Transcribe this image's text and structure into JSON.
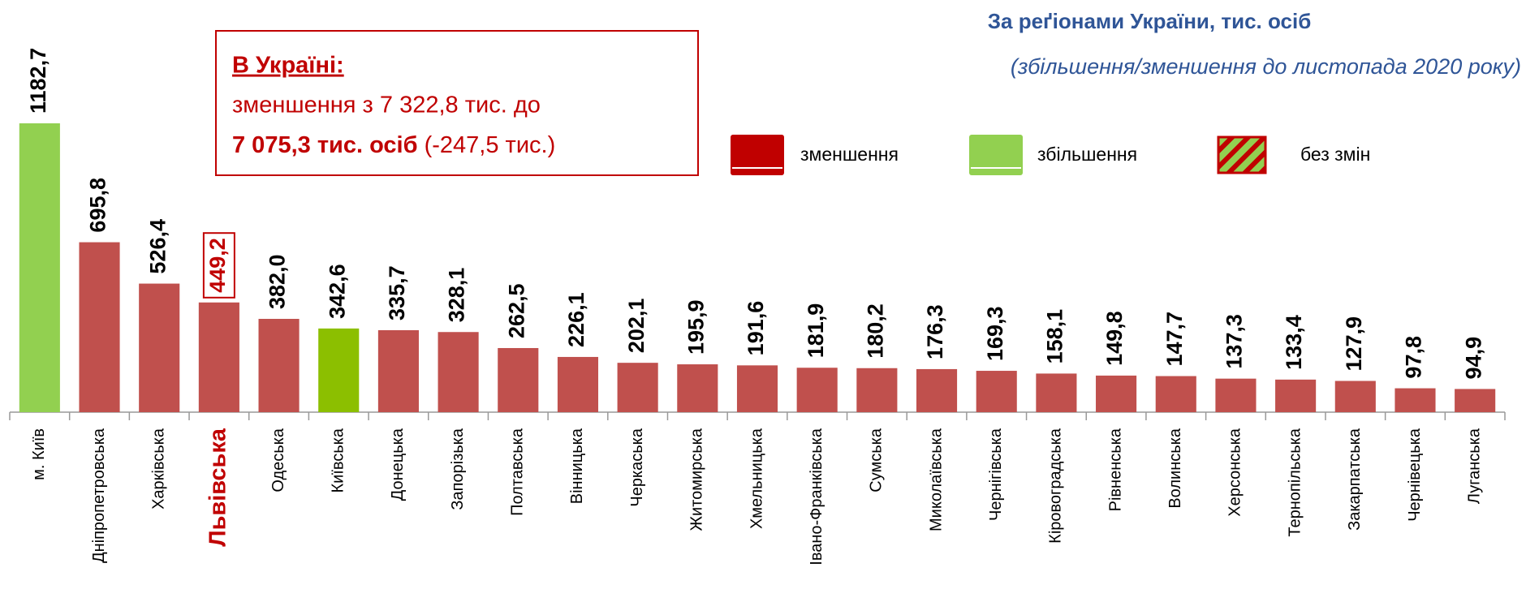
{
  "chart_data": {
    "type": "bar",
    "title": "За реґіонами України, тис. осіб",
    "subtitle": "(збільшення/зменшення до листопада 2020 року)",
    "categories": [
      "м. Київ",
      "Дніпропетровська",
      "Харківська",
      "Львівська",
      "Одеська",
      "Київська",
      "Донецька",
      "Запорізька",
      "Полтавська",
      "Вінницька",
      "Черкаська",
      "Житомирська",
      "Хмельницька",
      "Івано-Франківська",
      "Сумська",
      "Миколаївська",
      "Чернігівська",
      "Кіровоградська",
      "Рівненська",
      "Волинська",
      "Херсонська",
      "Тернопільська",
      "Закарпатська",
      "Чернівецька",
      "Луганська"
    ],
    "values": [
      1182.7,
      695.8,
      526.4,
      449.2,
      382.0,
      342.6,
      335.7,
      328.1,
      262.5,
      226.1,
      202.1,
      195.9,
      191.6,
      181.9,
      180.2,
      176.3,
      169.3,
      158.1,
      149.8,
      147.7,
      137.3,
      133.4,
      127.9,
      97.8,
      94.9
    ],
    "value_labels": [
      "1182,7",
      "695,8",
      "526,4",
      "449,2",
      "382,0",
      "342,6",
      "335,7",
      "328,1",
      "262,5",
      "226,1",
      "202,1",
      "195,9",
      "191,6",
      "181,9",
      "180,2",
      "176,3",
      "169,3",
      "158,1",
      "149,8",
      "147,7",
      "137,3",
      "133,4",
      "127,9",
      "97,8",
      "94,9"
    ],
    "colors": [
      "#92d050",
      "#c0504d",
      "#c0504d",
      "#c0504d",
      "#c0504d",
      "#8cbf00",
      "#c0504d",
      "#c0504d",
      "#c0504d",
      "#c0504d",
      "#c0504d",
      "#c0504d",
      "#c0504d",
      "#c0504d",
      "#c0504d",
      "#c0504d",
      "#c0504d",
      "#c0504d",
      "#c0504d",
      "#c0504d",
      "#c0504d",
      "#c0504d",
      "#c0504d",
      "#c0504d",
      "#c0504d"
    ],
    "highlight": "Львівська",
    "legend": [
      {
        "name": "зменшення",
        "color": "#c00000"
      },
      {
        "name": "збільшення",
        "color": "#92d050"
      },
      {
        "name": "без змін",
        "color": "#92d050",
        "hatch": "#c00000"
      }
    ],
    "annotation": {
      "heading": "В Україні:",
      "line1": "зменшення з 7 322,8 тис. до",
      "bold": "7 075,3 тис. осіб",
      "rest": " (-247,5 тис.)"
    }
  }
}
